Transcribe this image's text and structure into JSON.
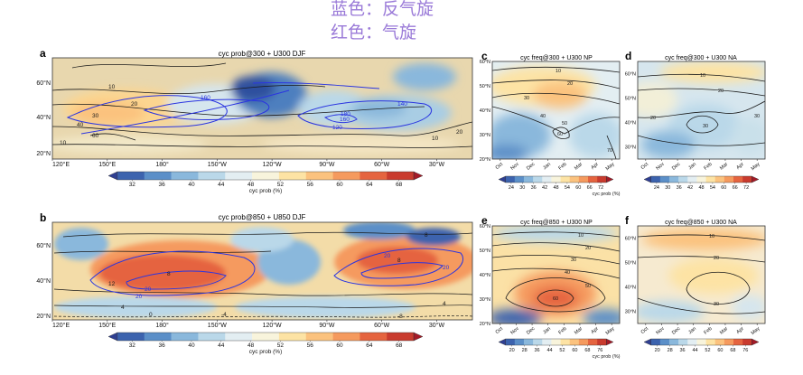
{
  "header_notes": [
    "蓝色：反气旋",
    "红色：气旋"
  ],
  "colors": {
    "cmap": [
      "#2f3f92",
      "#3c63ae",
      "#5b8fc8",
      "#8ab8dc",
      "#bad8e9",
      "#e3eef2",
      "#f8f4dc",
      "#fde3a4",
      "#fbc27e",
      "#f59a5e",
      "#e5643f",
      "#c93b2e",
      "#a31a27"
    ],
    "contour_black": "#1a1a1a",
    "contour_blue": "#2b35e0",
    "header_note": "#9a7ad8"
  },
  "chart_data": [
    {
      "type": "heatmap",
      "panel": "a",
      "title": "cyc prob@300 + U300 DJF",
      "xticks": [
        "120°E",
        "150°E",
        "180°",
        "150°W",
        "120°W",
        "90°W",
        "60°W",
        "30°W"
      ],
      "yticks": [
        "60°N",
        "40°N",
        "20°N"
      ],
      "ylim_deg": [
        20,
        75
      ],
      "colorbar": {
        "label": "cyc prob (%)",
        "ticks": [
          32,
          36,
          40,
          44,
          48,
          52,
          56,
          60,
          64,
          68
        ],
        "extend": "both"
      },
      "contour_labels_black": [
        "10",
        "20",
        "30",
        "40",
        "60",
        "10",
        "20",
        "10"
      ],
      "contour_labels_blue": [
        "160",
        "160",
        "120",
        "180",
        "140"
      ]
    },
    {
      "type": "heatmap",
      "panel": "b",
      "title": "cyc prob@850 + U850 DJF",
      "xticks": [
        "120°E",
        "150°E",
        "180°",
        "150°W",
        "120°W",
        "90°W",
        "60°W",
        "30°W"
      ],
      "yticks": [
        "60°N",
        "40°N",
        "20°N"
      ],
      "ylim_deg": [
        20,
        75
      ],
      "colorbar": {
        "label": "cyc prob (%)",
        "ticks": [
          32,
          36,
          40,
          44,
          48,
          52,
          56,
          60,
          64,
          68
        ],
        "extend": "both"
      },
      "contour_labels_black": [
        "8",
        "8",
        "12",
        "4",
        "0",
        "-4",
        "-8",
        "8",
        "4"
      ],
      "contour_labels_blue": [
        "20",
        "20",
        "20",
        "20"
      ]
    },
    {
      "type": "heatmap",
      "panel": "c",
      "title": "cyc freq@300 + U300 NP",
      "xticks": [
        "Oct",
        "Nov",
        "Dec",
        "Jan",
        "Feb",
        "Mar",
        "Apr",
        "May"
      ],
      "yticks": [
        "60°N",
        "50°N",
        "40°N",
        "30°N",
        "20°N"
      ],
      "ylim_deg": [
        20,
        60
      ],
      "colorbar": {
        "label": "cyc prob (%)",
        "ticks": [
          24,
          30,
          36,
          42,
          48,
          54,
          60,
          66,
          72
        ],
        "extend": "both"
      },
      "contour_labels": [
        "10",
        "20",
        "30",
        "40",
        "50",
        "60",
        "70"
      ]
    },
    {
      "type": "heatmap",
      "panel": "d",
      "title": "cyc freq@300 + U300 NA",
      "xticks": [
        "Oct",
        "Nov",
        "Dec",
        "Jan",
        "Feb",
        "Mar",
        "Apr",
        "May"
      ],
      "yticks": [
        "60°N",
        "50°N",
        "40°N",
        "30°N"
      ],
      "ylim_deg": [
        25,
        65
      ],
      "colorbar": {
        "label": "",
        "ticks": [
          24,
          30,
          36,
          42,
          48,
          54,
          60,
          66,
          72
        ],
        "extend": "both"
      },
      "contour_labels": [
        "10",
        "20",
        "30",
        "20",
        "30"
      ]
    },
    {
      "type": "heatmap",
      "panel": "e",
      "title": "cyc freq@850 + U300 NP",
      "xticks": [
        "Oct",
        "Nov",
        "Dec",
        "Jan",
        "Feb",
        "Mar",
        "Apr",
        "May"
      ],
      "yticks": [
        "60°N",
        "50°N",
        "40°N",
        "30°N",
        "20°N"
      ],
      "ylim_deg": [
        20,
        60
      ],
      "colorbar": {
        "label": "cyc prob (%)",
        "ticks": [
          20,
          28,
          36,
          44,
          52,
          60,
          68,
          76
        ],
        "extend": "both"
      },
      "contour_labels": [
        "10",
        "20",
        "30",
        "40",
        "50",
        "60"
      ]
    },
    {
      "type": "heatmap",
      "panel": "f",
      "title": "cyc freq@850 + U300 NA",
      "xticks": [
        "Oct",
        "Nov",
        "Dec",
        "Jan",
        "Feb",
        "Mar",
        "Apr",
        "May"
      ],
      "yticks": [
        "60°N",
        "50°N",
        "40°N",
        "30°N"
      ],
      "ylim_deg": [
        25,
        65
      ],
      "colorbar": {
        "label": "",
        "ticks": [
          20,
          28,
          36,
          44,
          52,
          60,
          68,
          76
        ],
        "extend": "both"
      },
      "contour_labels": [
        "10",
        "20",
        "30"
      ]
    }
  ]
}
